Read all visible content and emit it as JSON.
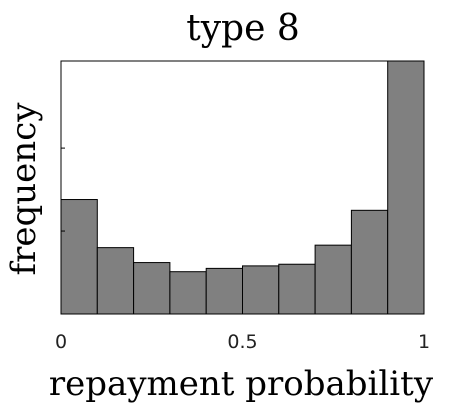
{
  "chart_data": {
    "type": "bar",
    "title": "type 8",
    "xlabel": "repayment probability",
    "ylabel": "frequency",
    "x_ticks": [
      "0",
      "0.5",
      "1"
    ],
    "x_tick_values": [
      0,
      0.5,
      1
    ],
    "xlim": [
      0,
      1
    ],
    "ylim": [
      0,
      3.05
    ],
    "y_ticks_labeled": false,
    "grid": false,
    "bar_color": "#808080",
    "bar_edge_color": "#000000",
    "bins": [
      {
        "x0": 0.0,
        "x1": 0.1,
        "value": 1.38
      },
      {
        "x0": 0.1,
        "x1": 0.2,
        "value": 0.8
      },
      {
        "x0": 0.2,
        "x1": 0.3,
        "value": 0.62
      },
      {
        "x0": 0.3,
        "x1": 0.4,
        "value": 0.51
      },
      {
        "x0": 0.4,
        "x1": 0.5,
        "value": 0.55
      },
      {
        "x0": 0.5,
        "x1": 0.6,
        "value": 0.58
      },
      {
        "x0": 0.6,
        "x1": 0.7,
        "value": 0.6
      },
      {
        "x0": 0.7,
        "x1": 0.8,
        "value": 0.83
      },
      {
        "x0": 0.8,
        "x1": 0.9,
        "value": 1.25
      },
      {
        "x0": 0.9,
        "x1": 1.0,
        "value": 3.05
      }
    ]
  }
}
